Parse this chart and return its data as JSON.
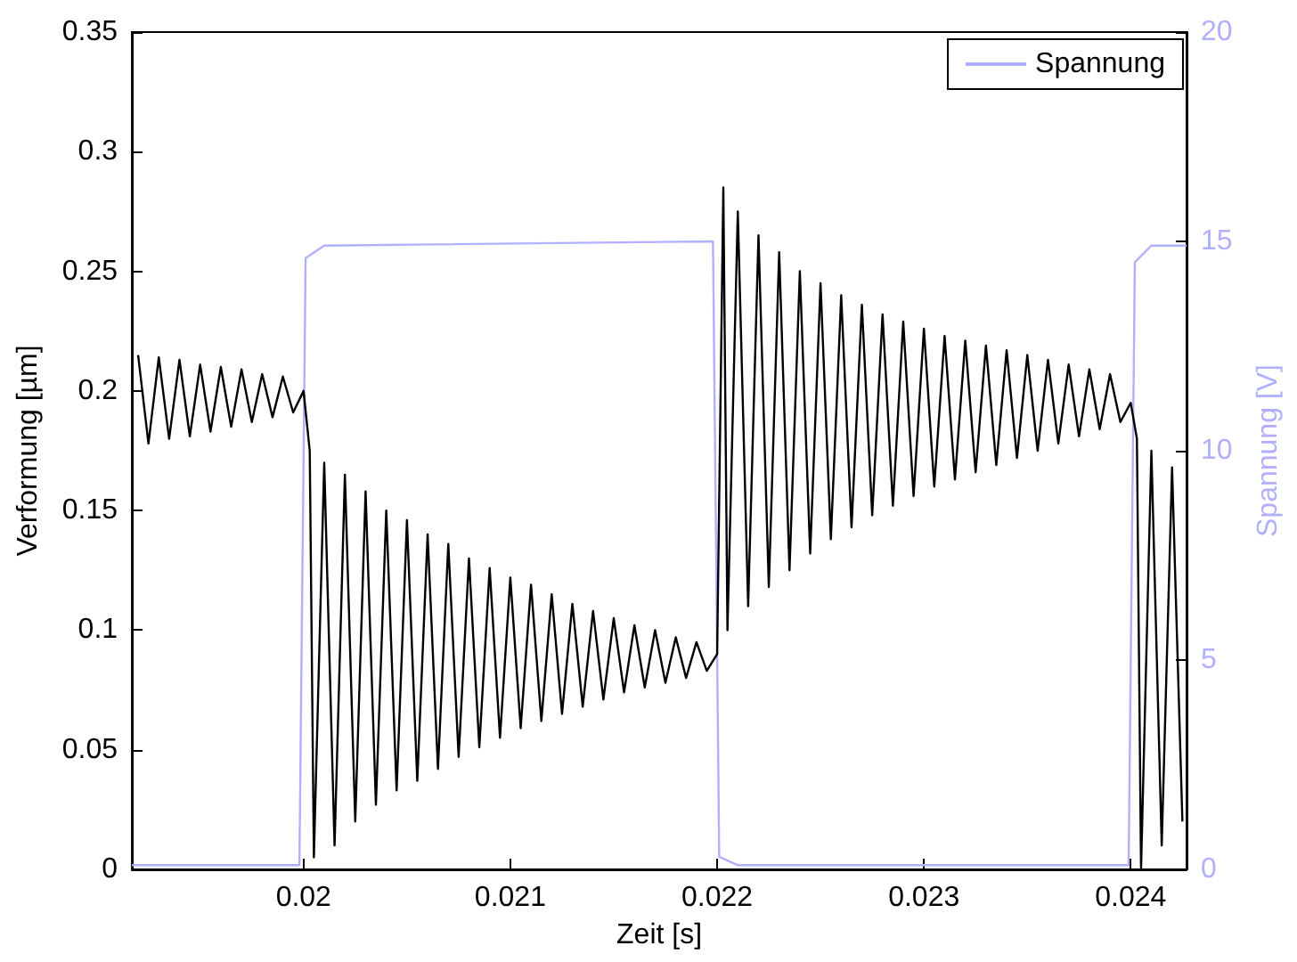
{
  "chart_data": {
    "type": "line",
    "xlabel": "Zeit [s]",
    "ylabel": "Verformung [µm]",
    "y2label": "Spannung [V]",
    "xlim": [
      0.01917,
      0.02427
    ],
    "xticks": [
      0.02,
      0.021,
      0.022,
      0.023,
      0.024
    ],
    "ylim": [
      0,
      0.35
    ],
    "yticks": [
      0,
      0.05,
      0.1,
      0.15,
      0.2,
      0.25,
      0.3,
      0.35
    ],
    "y2lim": [
      0,
      20
    ],
    "y2ticks": [
      0,
      5,
      10,
      15,
      20
    ],
    "grid": false,
    "legend": "top right",
    "marker": "none",
    "series": [
      {
        "color": "#000000",
        "x": [
          0.0192,
          0.01925,
          0.0193,
          0.01935,
          0.0194,
          0.01945,
          0.0195,
          0.01955,
          0.0196,
          0.01965,
          0.0197,
          0.01975,
          0.0198,
          0.01985,
          0.0199,
          0.01995,
          0.02,
          0.02003,
          0.02005,
          0.0201,
          0.02015,
          0.0202,
          0.02025,
          0.0203,
          0.02035,
          0.0204,
          0.02045,
          0.0205,
          0.02055,
          0.0206,
          0.02065,
          0.0207,
          0.02075,
          0.0208,
          0.02085,
          0.0209,
          0.02095,
          0.021,
          0.02105,
          0.0211,
          0.02115,
          0.0212,
          0.02125,
          0.0213,
          0.02135,
          0.0214,
          0.02145,
          0.0215,
          0.02155,
          0.0216,
          0.02165,
          0.0217,
          0.02175,
          0.0218,
          0.02185,
          0.0219,
          0.02195,
          0.022,
          0.02203,
          0.02205,
          0.0221,
          0.02215,
          0.0222,
          0.02225,
          0.0223,
          0.02235,
          0.0224,
          0.02245,
          0.0225,
          0.02255,
          0.0226,
          0.02265,
          0.0227,
          0.02275,
          0.0228,
          0.02285,
          0.0229,
          0.02295,
          0.023,
          0.02305,
          0.0231,
          0.02315,
          0.0232,
          0.02325,
          0.0233,
          0.02335,
          0.0234,
          0.02345,
          0.0235,
          0.02355,
          0.0236,
          0.02365,
          0.0237,
          0.02375,
          0.0238,
          0.02385,
          0.0239,
          0.02395,
          0.024,
          0.02403,
          0.02405,
          0.0241,
          0.02415,
          0.0242,
          0.02425
        ],
        "values": [
          0.215,
          0.178,
          0.214,
          0.18,
          0.213,
          0.181,
          0.211,
          0.183,
          0.21,
          0.185,
          0.209,
          0.187,
          0.207,
          0.189,
          0.206,
          0.191,
          0.2,
          0.175,
          0.005,
          0.17,
          0.01,
          0.165,
          0.02,
          0.158,
          0.027,
          0.15,
          0.033,
          0.146,
          0.037,
          0.14,
          0.042,
          0.136,
          0.047,
          0.13,
          0.051,
          0.126,
          0.055,
          0.122,
          0.059,
          0.119,
          0.062,
          0.115,
          0.065,
          0.111,
          0.068,
          0.108,
          0.071,
          0.105,
          0.074,
          0.102,
          0.076,
          0.1,
          0.078,
          0.097,
          0.08,
          0.095,
          0.083,
          0.09,
          0.285,
          0.1,
          0.275,
          0.11,
          0.265,
          0.118,
          0.258,
          0.125,
          0.25,
          0.132,
          0.245,
          0.138,
          0.24,
          0.143,
          0.236,
          0.148,
          0.232,
          0.152,
          0.229,
          0.156,
          0.226,
          0.16,
          0.223,
          0.163,
          0.221,
          0.166,
          0.219,
          0.169,
          0.217,
          0.172,
          0.215,
          0.175,
          0.213,
          0.178,
          0.211,
          0.181,
          0.209,
          0.184,
          0.207,
          0.187,
          0.195,
          0.18,
          0,
          0.175,
          0.01,
          0.168,
          0.02
        ]
      },
      {
        "name": "Spannung",
        "color": "#b0b0ff",
        "axis": "y2",
        "x": [
          0.01917,
          0.01998,
          0.02001,
          0.0201,
          0.02198,
          0.02201,
          0.0221,
          0.02399,
          0.02402,
          0.0241,
          0.02427
        ],
        "values": [
          0.1,
          0.1,
          14.6,
          14.9,
          15,
          0.3,
          0.1,
          0.1,
          14.5,
          14.9,
          14.9
        ]
      }
    ]
  }
}
